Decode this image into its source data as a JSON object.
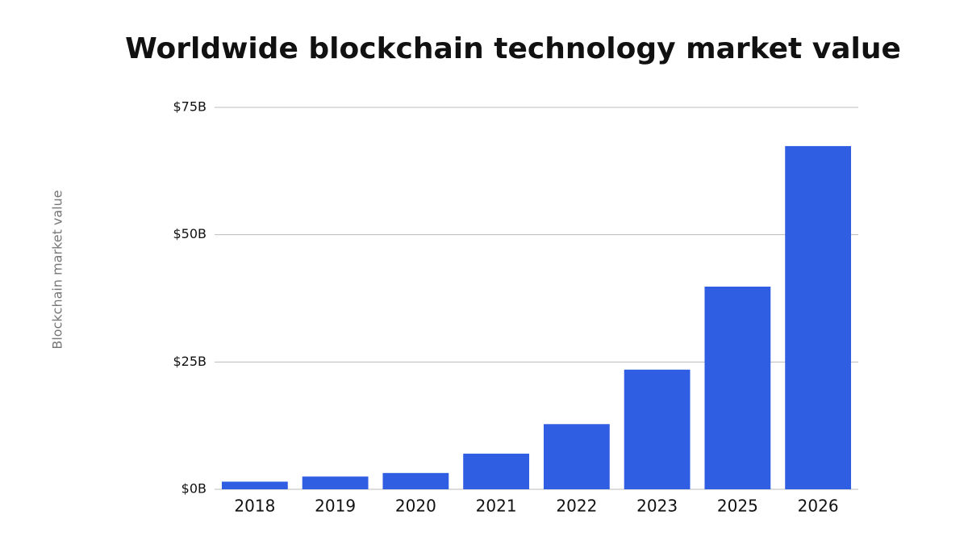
{
  "chart_data": {
    "type": "bar",
    "title": "Worldwide blockchain technology market value",
    "y_label": "Blockchain market value",
    "categories": [
      "2018",
      "2019",
      "2020",
      "2021",
      "2022",
      "2023",
      "2025",
      "2026"
    ],
    "values": [
      1.5,
      2.5,
      3.2,
      7.0,
      12.8,
      23.5,
      39.8,
      67.4
    ],
    "color": "#2f5ee3",
    "ylim": [
      0,
      75
    ],
    "yticks": [
      {
        "value": 0,
        "label": "$0B"
      },
      {
        "value": 25,
        "label": "$25B"
      },
      {
        "value": 50,
        "label": "$50B"
      },
      {
        "value": 75,
        "label": "$75B"
      }
    ],
    "grid": true
  }
}
